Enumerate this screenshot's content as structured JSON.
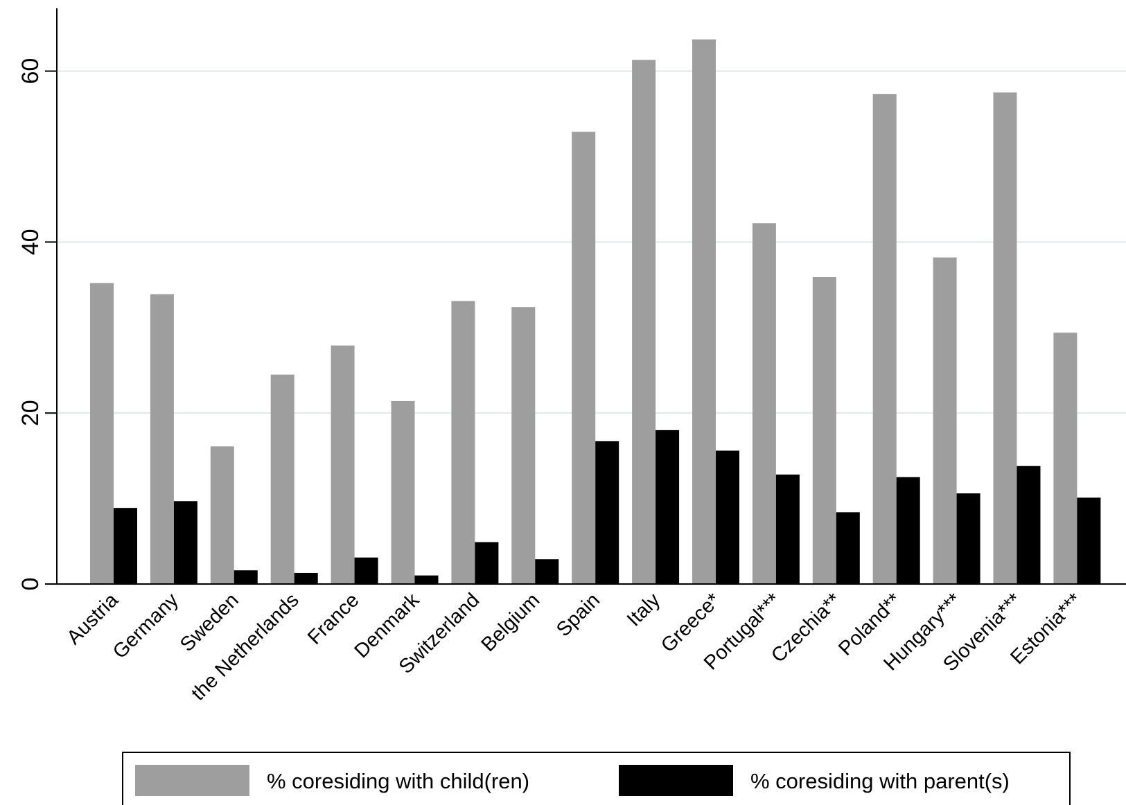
{
  "chart_data": {
    "type": "bar",
    "categories": [
      "Austria",
      "Germany",
      "Sweden",
      "the Netherlands",
      "France",
      "Denmark",
      "Switzerland",
      "Belgium",
      "Spain",
      "Italy",
      "Greece*",
      "Portugal***",
      "Czechia**",
      "Poland**",
      "Hungary***",
      "Slovenia***",
      "Estonia***"
    ],
    "series": [
      {
        "name": "% coresiding with child(ren)",
        "color": "#9e9e9e",
        "values": [
          35.2,
          33.9,
          16.1,
          24.5,
          27.9,
          21.4,
          33.1,
          32.4,
          52.9,
          61.3,
          63.7,
          42.2,
          35.9,
          57.3,
          38.2,
          57.5,
          29.4
        ]
      },
      {
        "name": "% coresiding with parent(s)",
        "color": "#000000",
        "values": [
          8.9,
          9.7,
          1.6,
          1.3,
          3.1,
          1.0,
          4.9,
          2.9,
          16.7,
          18.0,
          15.6,
          12.8,
          8.4,
          12.5,
          10.6,
          13.8,
          10.1
        ]
      }
    ],
    "yticks": [
      0,
      20,
      40,
      60
    ],
    "ylim": [
      0,
      67
    ],
    "title": "",
    "xlabel": "",
    "ylabel": "",
    "grid": true,
    "legend_position": "bottom"
  }
}
